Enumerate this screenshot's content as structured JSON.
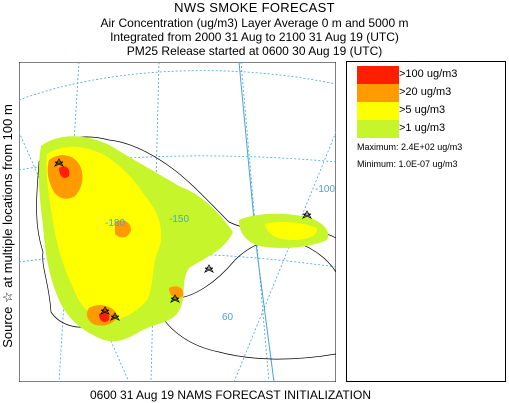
{
  "header": {
    "title": "NWS SMOKE FORECAST",
    "line1": "Air Concentration (ug/m3) Layer Average    0 m and  5000 m",
    "line2": "Integrated from 2000 31 Aug to 2100 31 Aug 19 (UTC)",
    "line3": "PM25 Release started at 0600 30 Aug 19 (UTC)"
  },
  "side_label": "Source ☆  at multiple locations  from   100 m",
  "map": {
    "grid_labels": [
      "-180",
      "-100",
      "-150",
      "60"
    ],
    "colors": {
      "land_outline": "#000000",
      "grid": "#4aa3d6",
      "water_border": "#4aa3d6"
    }
  },
  "legend": {
    "items": [
      {
        "label": ">100 ug/m3",
        "color": "#ff1f00"
      },
      {
        "label": ">20 ug/m3",
        "color": "#ff9a00"
      },
      {
        "label": ">5 ug/m3",
        "color": "#ffff00"
      },
      {
        "label": ">1 ug/m3",
        "color": "#c6f52c"
      }
    ],
    "maximum": "Maximum: 2.4E+02 ug/m3",
    "minimum": "Minimum: 1.0E-07 ug/m3"
  },
  "footer": "0600 31 Aug 19 NAMS FORECAST INITIALIZATION"
}
